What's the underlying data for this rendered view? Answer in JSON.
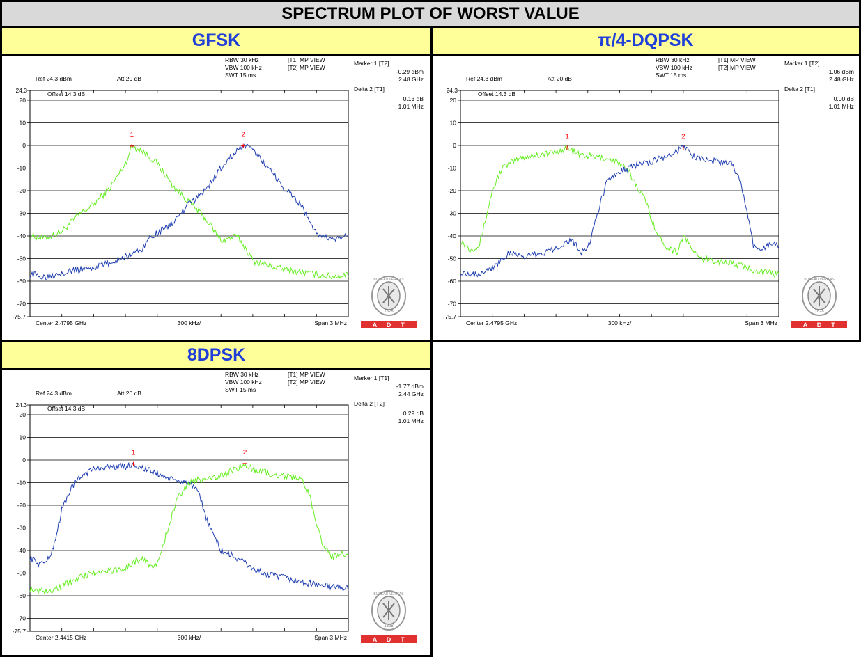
{
  "page": {
    "title": "SPECTRUM PLOT OF WORST VALUE"
  },
  "colors": {
    "trace1": "#66ee22",
    "trace2": "#1f3fb0",
    "header": "#ffff99",
    "heading_text": "#1f3fd8",
    "marker": "#ff0000",
    "adt_red": "#e03030"
  },
  "logo": {
    "brand": "BUREAU VERITAS",
    "year": "1828",
    "adt": [
      "A",
      "D",
      "T"
    ]
  },
  "chart_data": [
    {
      "type": "line",
      "panel_title": "GFSK",
      "settings": {
        "ref": "Ref 24.3 dBm",
        "att": "Att  20 dB",
        "offset": "Offset 14.3 dB",
        "rbw": "RBW 30 kHz",
        "vbw": "VBW 100 kHz",
        "swt": "SWT 15 ms",
        "t1": "[T1] MP VIEW",
        "t2": "[T2] MP VIEW"
      },
      "marker_info": {
        "marker_label": "Marker 1 [T2]",
        "marker_value": "-0.29 dBm",
        "marker_freq": "2.48 GHz",
        "delta_label": "Delta 2 [T1]",
        "delta_value": "0.13 dB",
        "delta_freq": "1.01 MHz"
      },
      "x_labels": {
        "left": "Center 2.4795 GHz",
        "mid": "300 kHz/",
        "right": "Span 3 MHz"
      },
      "ylim": [
        -75.7,
        24.3
      ],
      "y_ticks": [
        "24.3",
        "20",
        "10",
        "0",
        "-10",
        "-20",
        "-30",
        "-40",
        "-50",
        "-60",
        "-70",
        "-75.7"
      ],
      "x_divisions": 10,
      "markers": [
        {
          "label": "1",
          "x": 3.2,
          "y": -0.3
        },
        {
          "label": "2",
          "x": 6.7,
          "y": -0.2
        }
      ],
      "series": [
        {
          "trace": "T1",
          "color": "#66ee22",
          "x": [
            0,
            0.5,
            1.0,
            1.5,
            2.0,
            2.5,
            3.0,
            3.2,
            3.5,
            4.0,
            4.5,
            5.0,
            5.5,
            6.0,
            6.3,
            6.5,
            6.8,
            7.0,
            7.5,
            8.0,
            8.5,
            9.0,
            9.5,
            10
          ],
          "y": [
            -40,
            -41,
            -38,
            -31,
            -26,
            -19,
            -8,
            -0.3,
            -2,
            -8,
            -18,
            -25,
            -32,
            -42,
            -41,
            -40,
            -46,
            -51,
            -53,
            -55,
            -56,
            -57,
            -58,
            -57
          ]
        },
        {
          "trace": "T2",
          "color": "#1f3fb0",
          "x": [
            0,
            0.5,
            1.0,
            1.5,
            2.0,
            2.5,
            3.0,
            3.5,
            3.8,
            4.0,
            4.5,
            5.0,
            5.5,
            6.0,
            6.5,
            6.7,
            7.0,
            7.5,
            8.0,
            8.5,
            9.0,
            9.5,
            10
          ],
          "y": [
            -57,
            -58,
            -56,
            -55,
            -54,
            -52,
            -49,
            -46,
            -40,
            -39,
            -34,
            -26,
            -20,
            -10,
            -2,
            -0.2,
            -2,
            -10,
            -19,
            -26,
            -39,
            -42,
            -40
          ]
        }
      ]
    },
    {
      "type": "line",
      "panel_title": "π/4-DQPSK",
      "settings": {
        "ref": "Ref 24.3 dBm",
        "att": "Att  20 dB",
        "offset": "Offset 14.3 dB",
        "rbw": "RBW 30 kHz",
        "vbw": "VBW 100 kHz",
        "swt": "SWT 15 ms",
        "t1": "[T1] MP VIEW",
        "t2": "[T2] MP VIEW"
      },
      "marker_info": {
        "marker_label": "Marker 1 [T2]",
        "marker_value": "-1.06 dBm",
        "marker_freq": "2.48 GHz",
        "delta_label": "Delta 2 [T1]",
        "delta_value": "0.00 dB",
        "delta_freq": "1.01 MHz"
      },
      "x_labels": {
        "left": "Center 2.4795 GHz",
        "mid": "300 kHz/",
        "right": "Span 3 MHz"
      },
      "ylim": [
        -75.7,
        24.3
      ],
      "y_ticks": [
        "24.3",
        "20",
        "10",
        "0",
        "-10",
        "-20",
        "-30",
        "-40",
        "-50",
        "-60",
        "-70",
        "-75.7"
      ],
      "x_divisions": 10,
      "markers": [
        {
          "label": "1",
          "x": 3.35,
          "y": -1.06
        },
        {
          "label": "2",
          "x": 7.0,
          "y": -1.1
        }
      ],
      "series": [
        {
          "trace": "T1",
          "color": "#66ee22",
          "x": [
            0,
            0.3,
            0.6,
            0.8,
            1.0,
            1.3,
            1.7,
            2.0,
            2.5,
            3.0,
            3.35,
            3.7,
            4.2,
            4.7,
            5.0,
            5.3,
            5.8,
            6.2,
            6.5,
            6.8,
            7.0,
            7.5,
            8.0,
            8.5,
            9.0,
            9.5,
            10
          ],
          "y": [
            -42,
            -46,
            -44,
            -32,
            -20,
            -10,
            -7,
            -5,
            -4,
            -3,
            -1,
            -4,
            -5,
            -6,
            -8,
            -12,
            -24,
            -40,
            -45,
            -47,
            -40,
            -50,
            -51,
            -52,
            -54,
            -56,
            -57
          ]
        },
        {
          "trace": "T2",
          "color": "#1f3fb0",
          "x": [
            0,
            0.5,
            1.0,
            1.5,
            2.0,
            2.5,
            3.0,
            3.5,
            3.8,
            4.0,
            4.3,
            4.6,
            5.0,
            5.5,
            6.0,
            6.5,
            7.0,
            7.5,
            8.0,
            8.5,
            8.8,
            9.0,
            9.2,
            9.5,
            9.8,
            10
          ],
          "y": [
            -56,
            -57,
            -54,
            -48,
            -49,
            -48,
            -45,
            -42,
            -47,
            -46,
            -30,
            -16,
            -11,
            -9,
            -7,
            -5,
            -1,
            -6,
            -7,
            -8,
            -16,
            -30,
            -44,
            -46,
            -43,
            -45
          ]
        }
      ]
    },
    {
      "type": "line",
      "panel_title": "8DPSK",
      "settings": {
        "ref": "Ref 24.3 dBm",
        "att": "Att  20 dB",
        "offset": "Offset 14.3 dB",
        "rbw": "RBW 30 kHz",
        "vbw": "VBW 100 kHz",
        "swt": "SWT 15 ms",
        "t1": "[T1] MP VIEW",
        "t2": "[T2] MP VIEW"
      },
      "marker_info": {
        "marker_label": "Marker 1 [T1]",
        "marker_value": "-1.77 dBm",
        "marker_freq": "2.44 GHz",
        "delta_label": "Delta 2 [T2]",
        "delta_value": "0.29 dB",
        "delta_freq": "1.01 MHz"
      },
      "x_labels": {
        "left": "Center 2.4415 GHz",
        "mid": "300 kHz/",
        "right": "Span 3 MHz"
      },
      "ylim": [
        -75.7,
        24.3
      ],
      "y_ticks": [
        "24.3",
        "20",
        "10",
        "0",
        "-10",
        "-20",
        "-30",
        "-40",
        "-50",
        "-60",
        "-70",
        "-75.7"
      ],
      "x_divisions": 10,
      "markers": [
        {
          "label": "1",
          "x": 3.25,
          "y": -1.77
        },
        {
          "label": "2",
          "x": 6.75,
          "y": -1.5
        }
      ],
      "series": [
        {
          "trace": "T1",
          "color": "#1f3fb0",
          "x": [
            0,
            0.3,
            0.6,
            0.8,
            1.0,
            1.3,
            1.7,
            2.0,
            2.5,
            3.0,
            3.25,
            3.6,
            4.0,
            4.5,
            5.0,
            5.3,
            5.6,
            6.0,
            6.3,
            6.6,
            7.0,
            7.5,
            8.0,
            8.5,
            9.0,
            9.5,
            10
          ],
          "y": [
            -43,
            -46,
            -44,
            -35,
            -22,
            -12,
            -6,
            -4,
            -3,
            -3,
            -1.8,
            -4,
            -6,
            -9,
            -10,
            -15,
            -28,
            -40,
            -42,
            -44,
            -48,
            -51,
            -52,
            -54,
            -55,
            -56,
            -57
          ]
        },
        {
          "trace": "T2",
          "color": "#66ee22",
          "x": [
            0,
            0.5,
            1.0,
            1.5,
            2.0,
            2.5,
            3.0,
            3.5,
            3.8,
            4.0,
            4.3,
            4.6,
            5.0,
            5.5,
            6.0,
            6.5,
            6.75,
            7.0,
            7.5,
            8.0,
            8.5,
            8.8,
            9.0,
            9.2,
            9.5,
            9.8,
            10
          ],
          "y": [
            -57,
            -58,
            -56,
            -52,
            -50,
            -49,
            -48,
            -43,
            -47,
            -46,
            -32,
            -18,
            -10,
            -8,
            -7,
            -4,
            -1.5,
            -4,
            -6,
            -7,
            -8,
            -16,
            -28,
            -38,
            -43,
            -41,
            -42
          ]
        }
      ]
    }
  ]
}
